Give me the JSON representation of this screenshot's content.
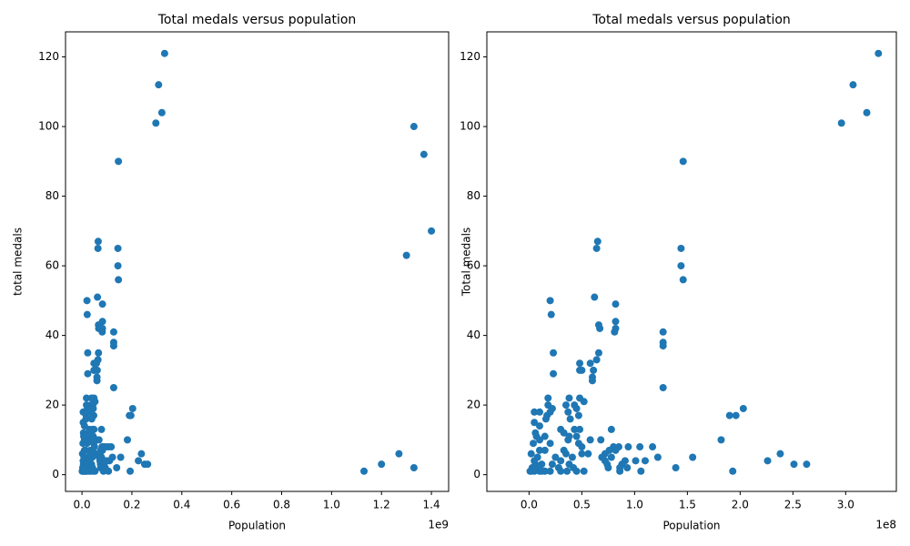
{
  "chart_data": [
    {
      "type": "scatter",
      "title": "Total medals versus population",
      "x_label": "Population",
      "y_label": "total medals",
      "x_offset_label": "1e9",
      "color": "#1f77b4",
      "xlim": [
        -0.066,
        1.469
      ],
      "ylim": [
        -4.8,
        127.2
      ],
      "xticks": [
        {
          "value": 0,
          "label": "0.0"
        },
        0.2,
        0.4,
        0.6,
        0.8,
        {
          "value": 1,
          "label": "1.0"
        },
        1.2,
        1.4
      ],
      "yticks": [
        0,
        20,
        40,
        60,
        80,
        100,
        120
      ],
      "x": [
        0.331,
        0.307,
        0.32,
        0.296,
        0.146,
        0.065,
        0.064,
        0.144,
        0.144,
        0.146,
        0.062,
        0.02,
        0.082,
        0.021,
        0.082,
        0.066,
        0.067,
        0.082,
        0.081,
        0.127,
        0.127,
        0.127,
        0.066,
        0.023,
        0.064,
        0.048,
        0.058,
        0.061,
        0.048,
        0.05,
        0.023,
        0.06,
        0.06,
        0.127,
        0.048,
        0.038,
        0.018,
        0.052,
        0.043,
        0.035,
        0.018,
        0.022,
        0.203,
        0.045,
        0.037,
        0.005,
        0.01,
        0.02,
        0.047,
        0.19,
        0.196,
        0.017,
        0.039,
        0.016,
        0.005,
        0.01,
        0.03,
        0.043,
        0.048,
        0.078,
        0.006,
        0.033,
        0.038,
        0.045,
        0.007,
        0.015,
        0.058,
        0.068,
        0.182,
        0.037,
        0.01,
        0.02,
        0.004,
        0.047,
        0.08,
        0.085,
        0.094,
        0.105,
        0.117,
        0.05,
        0.033,
        0.076,
        0.082,
        0.01,
        0.015,
        0.238,
        0.035,
        0.05,
        0.056,
        0.072,
        0.002,
        0.041,
        0.069,
        0.078,
        0.122,
        0.155,
        0.008,
        0.025,
        0.226,
        0.091,
        0.101,
        0.11,
        0.072,
        0.03,
        0.005,
        0.038,
        0.074,
        0.088,
        0.251,
        0.263,
        0.012,
        0.022,
        0.006,
        0.075,
        0.093,
        0.139,
        0.086,
        0.003,
        0.028,
        0.042,
        0.052,
        0.086,
        0.106,
        0.193,
        0.002,
        0.005,
        0.01,
        0.015,
        0.02,
        0.03,
        0.036,
        0.045,
        0.001,
        0.008,
        0.012,
        1.4,
        1.33,
        1.37,
        1.3,
        1.27,
        1.2,
        1.13,
        1.33
      ],
      "values": [
        121,
        112,
        104,
        101,
        90,
        67,
        65,
        65,
        60,
        56,
        51,
        50,
        49,
        46,
        44,
        43,
        42,
        42,
        41,
        41,
        38,
        37,
        35,
        35,
        33,
        32,
        32,
        30,
        30,
        30,
        29,
        28,
        27,
        25,
        22,
        22,
        22,
        21,
        20,
        20,
        20,
        19,
        19,
        19,
        18,
        18,
        18,
        18,
        17,
        17,
        17,
        17,
        16,
        16,
        15,
        14,
        13,
        13,
        13,
        13,
        12,
        12,
        11,
        11,
        11,
        11,
        10,
        10,
        10,
        10,
        10,
        9,
        9,
        9,
        8,
        8,
        8,
        8,
        8,
        8,
        7,
        7,
        7,
        7,
        7,
        6,
        6,
        6,
        6,
        6,
        6,
        5,
        5,
        5,
        5,
        5,
        5,
        5,
        4,
        4,
        4,
        4,
        4,
        4,
        4,
        3,
        3,
        3,
        3,
        3,
        3,
        3,
        3,
        2,
        2,
        2,
        2,
        2,
        2,
        2,
        1,
        1,
        1,
        1,
        1,
        1,
        1,
        1,
        1,
        1,
        1,
        1,
        1,
        2,
        1,
        70,
        100,
        92,
        63,
        6,
        3,
        1,
        2
      ]
    },
    {
      "type": "scatter",
      "title": "Total medals versus population",
      "x_label": "Population",
      "y_label": "Total medals",
      "x_offset_label": "1e8",
      "color": "#1f77b4",
      "xlim": [
        -0.4,
        3.48
      ],
      "ylim": [
        -4.8,
        127.2
      ],
      "xticks": [
        {
          "value": 0,
          "label": "0.0"
        },
        0.5,
        {
          "value": 1,
          "label": "1.0"
        },
        1.5,
        {
          "value": 2,
          "label": "2.0"
        },
        2.5,
        {
          "value": 3,
          "label": "3.0"
        }
      ],
      "yticks": [
        0,
        20,
        40,
        60,
        80,
        100,
        120
      ],
      "x": [
        3.31,
        3.07,
        3.2,
        2.96,
        1.46,
        0.65,
        0.64,
        1.44,
        1.44,
        1.46,
        0.62,
        0.2,
        0.82,
        0.21,
        0.82,
        0.66,
        0.67,
        0.82,
        0.81,
        1.27,
        1.27,
        1.27,
        0.66,
        0.23,
        0.64,
        0.48,
        0.58,
        0.61,
        0.48,
        0.5,
        0.23,
        0.6,
        0.6,
        1.27,
        0.48,
        0.38,
        0.18,
        0.52,
        0.43,
        0.35,
        0.18,
        0.22,
        2.03,
        0.45,
        0.37,
        0.05,
        0.1,
        0.2,
        0.47,
        1.9,
        1.96,
        0.17,
        0.39,
        0.16,
        0.05,
        0.1,
        0.3,
        0.43,
        0.48,
        0.78,
        0.06,
        0.33,
        0.38,
        0.45,
        0.07,
        0.15,
        0.58,
        0.68,
        1.82,
        0.37,
        0.1,
        0.2,
        0.04,
        0.47,
        0.8,
        0.85,
        0.94,
        1.05,
        1.17,
        0.5,
        0.33,
        0.76,
        0.82,
        0.1,
        0.15,
        2.38,
        0.35,
        0.5,
        0.56,
        0.72,
        0.02,
        0.41,
        0.69,
        0.78,
        1.22,
        1.55,
        0.08,
        0.25,
        2.26,
        0.91,
        1.01,
        1.1,
        0.72,
        0.3,
        0.05,
        0.38,
        0.74,
        0.88,
        2.51,
        2.63,
        0.12,
        0.22,
        0.06,
        0.75,
        0.93,
        1.39,
        0.86,
        0.03,
        0.28,
        0.42,
        0.52,
        0.86,
        1.06,
        1.93,
        0.02,
        0.05,
        0.1,
        0.15,
        0.2,
        0.3,
        0.36,
        0.45,
        0.01,
        0.08,
        0.12
      ],
      "values": [
        121,
        112,
        104,
        101,
        90,
        67,
        65,
        65,
        60,
        56,
        51,
        50,
        49,
        46,
        44,
        43,
        42,
        42,
        41,
        41,
        38,
        37,
        35,
        35,
        33,
        32,
        32,
        30,
        30,
        30,
        29,
        28,
        27,
        25,
        22,
        22,
        22,
        21,
        20,
        20,
        20,
        19,
        19,
        19,
        18,
        18,
        18,
        18,
        17,
        17,
        17,
        17,
        16,
        16,
        15,
        14,
        13,
        13,
        13,
        13,
        12,
        12,
        11,
        11,
        11,
        11,
        10,
        10,
        10,
        10,
        10,
        9,
        9,
        9,
        8,
        8,
        8,
        8,
        8,
        8,
        7,
        7,
        7,
        7,
        7,
        6,
        6,
        6,
        6,
        6,
        6,
        5,
        5,
        5,
        5,
        5,
        5,
        5,
        4,
        4,
        4,
        4,
        4,
        4,
        4,
        3,
        3,
        3,
        3,
        3,
        3,
        3,
        3,
        2,
        2,
        2,
        2,
        2,
        2,
        2,
        1,
        1,
        1,
        1,
        1,
        1,
        1,
        1,
        1,
        1,
        1,
        1,
        1,
        2,
        1
      ]
    }
  ]
}
